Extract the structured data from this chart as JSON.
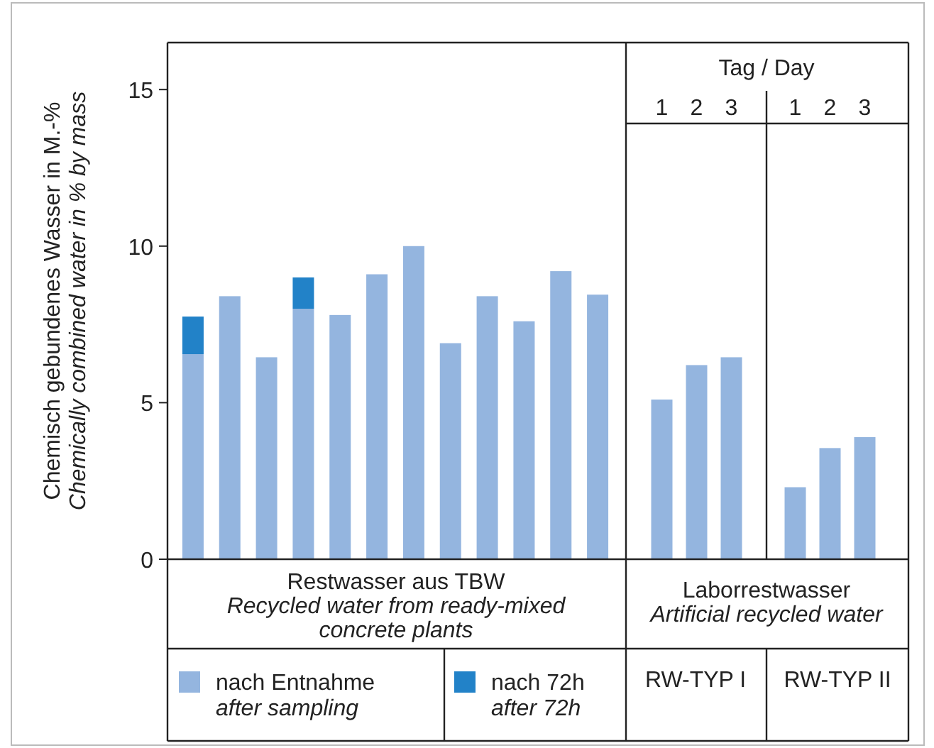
{
  "chart_data": [
    {
      "type": "bar",
      "stacked": true,
      "ylabel": "Chemisch gebundenes Wasser in M.-%\nChemically combined water in % by mass",
      "tick_labels": "y",
      "categories": [
        null,
        null,
        null,
        null,
        null,
        null,
        null,
        null,
        null,
        null,
        null,
        null
      ],
      "series": [
        {
          "name": "nach Entnahme\nafter sampling",
          "color": "#94b5df",
          "values": [
            6.55,
            8.4,
            6.45,
            8.0,
            7.8,
            9.1,
            10.0,
            6.9,
            8.4,
            7.6,
            9.2,
            8.45
          ]
        },
        {
          "name": "nach 72h\nafter 72h",
          "color": "#2282c8",
          "values": [
            1.2,
            null,
            null,
            1.0,
            null,
            null,
            null,
            null,
            null,
            null,
            null,
            null
          ]
        }
      ],
      "ylim": [
        0,
        16.5
      ],
      "yticks": [
        0,
        5,
        10,
        15
      ],
      "legend": "bottom",
      "annotations": [
        "Restwasser aus TBW\nRecycled water from ready-mixed\nconcrete plants"
      ]
    },
    {
      "type": "bar",
      "tick_labels": "x",
      "categories": [
        "1",
        "2",
        "3"
      ],
      "series": [
        {
          "color": "#94b5df",
          "values": [
            5.1,
            6.2,
            6.45
          ]
        }
      ],
      "ylim": [
        0,
        16.5
      ],
      "annotations": [
        "Tag / Day",
        "Laborrestwasser\nArtificial recycled water",
        "RW-TYP I"
      ]
    },
    {
      "type": "bar",
      "tick_labels": "x",
      "categories": [
        "1",
        "2",
        "3"
      ],
      "series": [
        {
          "color": "#94b5df",
          "values": [
            2.3,
            3.55,
            3.9
          ]
        }
      ],
      "ylim": [
        0,
        16.5
      ],
      "annotations": [
        "RW-TYP II"
      ]
    }
  ]
}
